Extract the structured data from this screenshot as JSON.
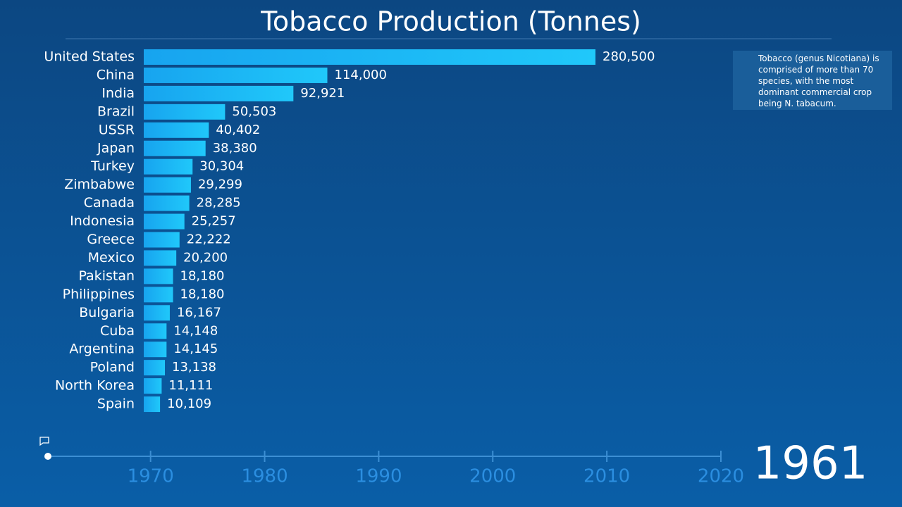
{
  "chart_data": {
    "type": "bar",
    "orientation": "horizontal",
    "title": "Tobacco Production (Tonnes)",
    "categories": [
      "United States",
      "China",
      "India",
      "Brazil",
      "USSR",
      "Japan",
      "Turkey",
      "Zimbabwe",
      "Canada",
      "Indonesia",
      "Greece",
      "Mexico",
      "Pakistan",
      "Philippines",
      "Bulgaria",
      "Cuba",
      "Argentina",
      "Poland",
      "North Korea",
      "Spain"
    ],
    "values": [
      280500,
      114000,
      92921,
      50503,
      40402,
      38380,
      30304,
      29299,
      28285,
      25257,
      22222,
      20200,
      18180,
      18180,
      16167,
      14148,
      14145,
      13138,
      11111,
      10109
    ],
    "value_labels": [
      "280,500",
      "114,000",
      "92,921",
      "50,503",
      "40,402",
      "38,380",
      "30,304",
      "29,299",
      "28,285",
      "25,257",
      "22,222",
      "20,200",
      "18,180",
      "18,180",
      "16,167",
      "14,148",
      "14,145",
      "13,138",
      "11,111",
      "10,109"
    ],
    "color": "#1ab2f4",
    "annotation": "Tobacco (genus Nicotiana) is comprised of more than 70 species, with the most dominant commercial crop being N. tabacum.",
    "timeline": {
      "xlim": [
        1961,
        2020
      ],
      "xticks": [
        1970,
        1980,
        1990,
        2000,
        2010,
        2020
      ],
      "current": 1961
    }
  }
}
